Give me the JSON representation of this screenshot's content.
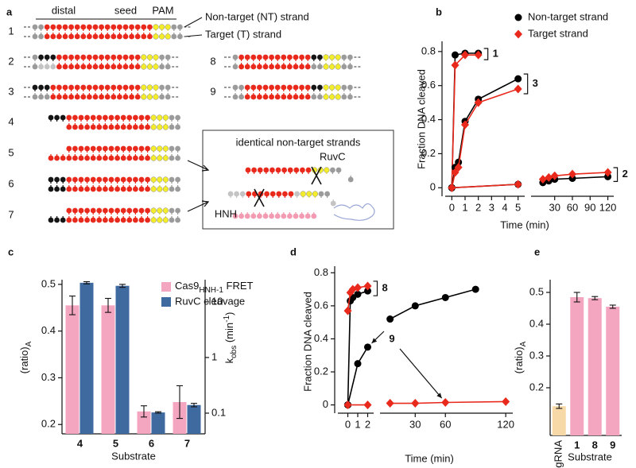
{
  "diagram": {
    "panel_label": "a",
    "headers": [
      "distal",
      "seed",
      "PAM"
    ],
    "strand_labels": [
      "Non-target (NT) strand",
      "Target (T) strand"
    ],
    "row_labels": [
      "1",
      "2",
      "3",
      "4",
      "5",
      "6",
      "7",
      "8",
      "9"
    ],
    "inset_title": "identical non-target strands",
    "enzymes": [
      "RuvC",
      "HNH"
    ]
  },
  "chart_data": [
    {
      "panel_label": "b",
      "type": "line",
      "y_label": "Fraction DNA cleaved",
      "x_label": "Time (min)",
      "ylim": [
        -0.05,
        0.86
      ],
      "yticks": [
        0,
        0.2,
        0.4,
        0.6,
        0.8
      ],
      "segments": [
        {
          "xlim": [
            -0.5,
            5.5
          ],
          "xticks": [
            0,
            1,
            2,
            3,
            4,
            5
          ]
        },
        {
          "xlim": [
            -10,
            130
          ],
          "xticks": [
            30,
            60,
            90,
            120
          ]
        }
      ],
      "legend_position": "upper right",
      "series": [
        {
          "name": "Non-target strand",
          "color": "#000000",
          "marker": "circle"
        },
        {
          "name": "Target strand",
          "color": "#e8291c",
          "marker": "diamond"
        }
      ],
      "groups": [
        {
          "label": "1",
          "annotation": "bracket",
          "lines": [
            {
              "x": [
                0,
                0.25,
                1,
                2
              ],
              "values": [
                0,
                0.78,
                0.79,
                0.79
              ]
            },
            {
              "x": [
                0,
                0.25,
                1,
                2
              ],
              "values": [
                0,
                0.72,
                0.78,
                0.78
              ]
            }
          ]
        },
        {
          "label": "3",
          "annotation": "bracket",
          "lines": [
            {
              "x": [
                0,
                0.25,
                0.5,
                1,
                2,
                5
              ],
              "values": [
                0,
                0.12,
                0.15,
                0.39,
                0.52,
                0.64
              ]
            },
            {
              "x": [
                0,
                0.25,
                0.5,
                1,
                2,
                5
              ],
              "values": [
                0,
                0.09,
                0.12,
                0.37,
                0.5,
                0.58
              ]
            }
          ]
        },
        {
          "label": "2",
          "annotation": "bracket",
          "lines": [
            {
              "x": [
                0,
                5,
                10,
                20,
                30,
                60,
                120
              ],
              "values": [
                0,
                0.02,
                0.03,
                0.04,
                0.05,
                0.055,
                0.065
              ]
            },
            {
              "x": [
                0,
                5,
                10,
                20,
                30,
                60,
                120
              ],
              "values": [
                0,
                0.02,
                0.05,
                0.06,
                0.07,
                0.08,
                0.09
              ]
            }
          ]
        }
      ]
    },
    {
      "panel_label": "c",
      "type": "bar",
      "x_label": "Substrate",
      "y_label_parts": [
        "(ratio)",
        "A"
      ],
      "y2_label_parts": [
        "k",
        "obs",
        " (min",
        "-1",
        ")"
      ],
      "categories": [
        "4",
        "5",
        "6",
        "7"
      ],
      "ylim": [
        0.18,
        0.51
      ],
      "yticks": [
        0.2,
        0.3,
        0.4,
        0.5
      ],
      "y2lim": [
        0.0425,
        25
      ],
      "y2ticks": [
        0.1,
        1,
        10
      ],
      "y2_scale": "log",
      "legend_position": "upper right",
      "series": [
        {
          "name_parts": [
            "Cas9",
            "HNH-1",
            " FRET"
          ],
          "color": "#f4a6c0",
          "values": [
            0.455,
            0.455,
            0.228,
            0.248
          ],
          "errors": [
            0.02,
            0.015,
            0.012,
            0.035
          ]
        },
        {
          "name": "RuvC cleavage",
          "color": "#3f6aa0",
          "axis": "y2",
          "values": [
            22,
            19.4,
            0.103,
            0.14
          ],
          "errors": [
            1,
            1.2,
            0.003,
            0.01
          ]
        }
      ]
    },
    {
      "panel_label": "d",
      "type": "line",
      "y_label": "Fraction DNA cleaved",
      "x_label": "Time (min)",
      "ylim": [
        -0.05,
        0.84
      ],
      "yticks": [
        0,
        0.2,
        0.4,
        0.6,
        0.8
      ],
      "segments": [
        {
          "xlim": [
            -1,
            2.6
          ],
          "xticks": [
            0,
            1,
            2
          ]
        },
        {
          "xlim": [
            -5,
            127
          ],
          "xticks": [
            30,
            60,
            120
          ]
        }
      ],
      "series": [
        {
          "color": "#000000",
          "marker": "circle"
        },
        {
          "color": "#e8291c",
          "marker": "diamond"
        }
      ],
      "groups": [
        {
          "label": "8",
          "annotation": "bracket",
          "lines": [
            {
              "x": [
                0,
                0.25,
                0.5,
                1,
                2
              ],
              "values": [
                0,
                0.63,
                0.65,
                0.67,
                0.69
              ]
            },
            {
              "x": [
                0,
                0.25,
                0.5,
                1,
                2
              ],
              "values": [
                0.57,
                0.68,
                0.7,
                0.71,
                0.72
              ]
            }
          ]
        },
        {
          "label": "9",
          "annotation": "arrows",
          "lines": [
            {
              "x": [
                0,
                1,
                2,
                5,
                30,
                60,
                90
              ],
              "values": [
                0,
                0.25,
                0.35,
                0.52,
                0.6,
                0.65,
                0.7
              ]
            },
            {
              "x": [
                0,
                2,
                5,
                30,
                60,
                120
              ],
              "values": [
                0,
                0,
                0.01,
                0.01,
                0.015,
                0.02
              ]
            }
          ]
        }
      ]
    },
    {
      "panel_label": "e",
      "type": "bar",
      "x_label": "Substrate",
      "y_label_parts": [
        "(ratio)",
        "A"
      ],
      "categories": [
        "+sgRNA",
        "1",
        "8",
        "9"
      ],
      "ylim": [
        0.05,
        0.54
      ],
      "yticks": [
        0.2,
        0.3,
        0.4,
        0.5
      ],
      "colors": [
        "#f7d9a8",
        "#f4a6c0",
        "#f4a6c0",
        "#f4a6c0"
      ],
      "values": [
        0.142,
        0.485,
        0.482,
        0.455
      ],
      "errors": [
        0.007,
        0.015,
        0.005,
        0.005
      ]
    }
  ]
}
